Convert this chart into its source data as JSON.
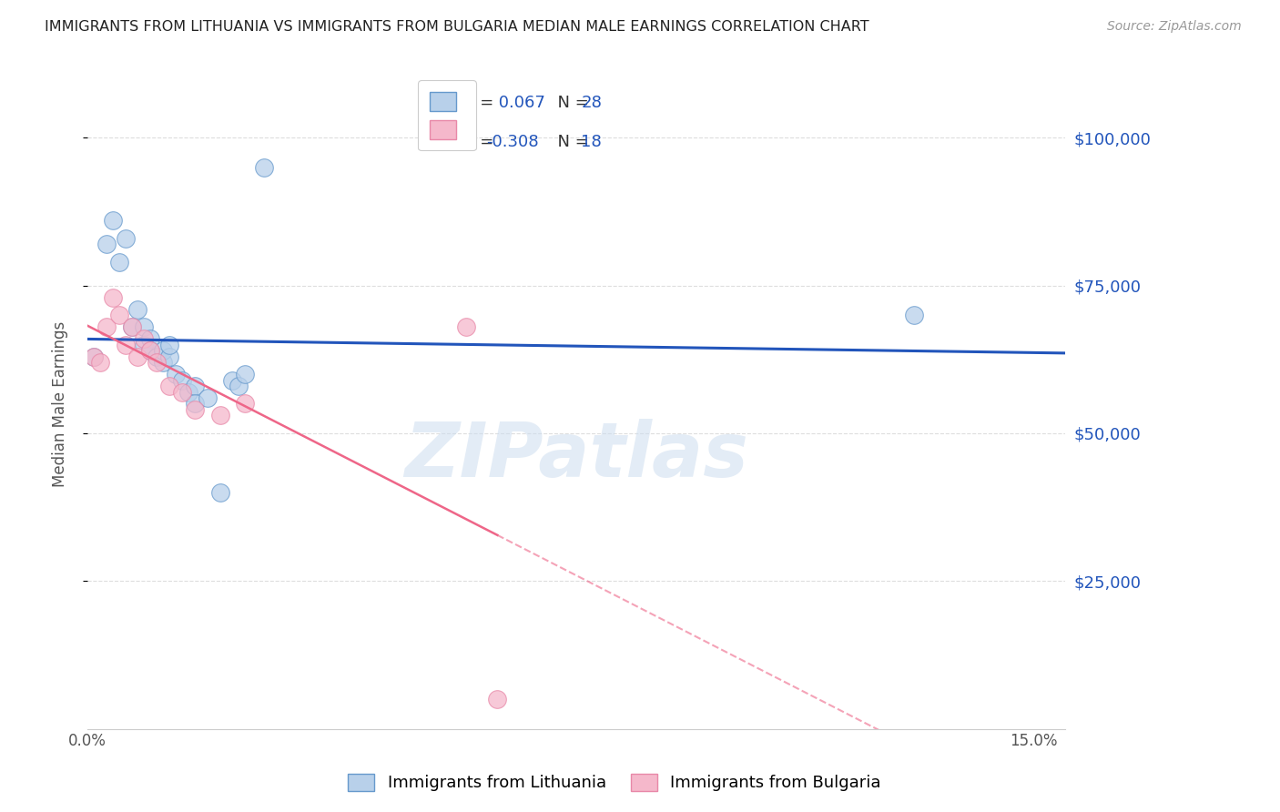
{
  "title": "IMMIGRANTS FROM LITHUANIA VS IMMIGRANTS FROM BULGARIA MEDIAN MALE EARNINGS CORRELATION CHART",
  "source": "Source: ZipAtlas.com",
  "ylabel": "Median Male Earnings",
  "ytick_labels": [
    "$25,000",
    "$50,000",
    "$75,000",
    "$100,000"
  ],
  "ytick_values": [
    25000,
    50000,
    75000,
    100000
  ],
  "ylim": [
    0,
    110000
  ],
  "xlim": [
    0.0,
    0.155
  ],
  "legend_R_lit": " 0.067",
  "legend_N_lit": "28",
  "legend_R_bul": "-0.308",
  "legend_N_bul": "18",
  "color_lit_fill": "#b8d0ea",
  "color_bul_fill": "#f5b8cb",
  "color_lit_edge": "#6699cc",
  "color_bul_edge": "#e888a8",
  "color_line_lit": "#2255bb",
  "color_line_bul": "#ee6688",
  "color_right_labels": "#2255bb",
  "watermark": "ZIPatlas",
  "lit_x": [
    0.001,
    0.003,
    0.004,
    0.005,
    0.006,
    0.007,
    0.008,
    0.009,
    0.009,
    0.01,
    0.01,
    0.011,
    0.012,
    0.012,
    0.013,
    0.013,
    0.014,
    0.015,
    0.016,
    0.017,
    0.017,
    0.019,
    0.021,
    0.023,
    0.024,
    0.025,
    0.028,
    0.131
  ],
  "lit_y": [
    63000,
    82000,
    86000,
    79000,
    83000,
    68000,
    71000,
    65000,
    68000,
    66000,
    64000,
    63000,
    62000,
    64000,
    63000,
    65000,
    60000,
    59000,
    57000,
    58000,
    55000,
    56000,
    40000,
    59000,
    58000,
    60000,
    95000,
    70000
  ],
  "bul_x": [
    0.001,
    0.002,
    0.003,
    0.004,
    0.005,
    0.006,
    0.007,
    0.008,
    0.009,
    0.01,
    0.011,
    0.013,
    0.015,
    0.017,
    0.021,
    0.025,
    0.06,
    0.065
  ],
  "bul_y": [
    63000,
    62000,
    68000,
    73000,
    70000,
    65000,
    68000,
    63000,
    66000,
    64000,
    62000,
    58000,
    57000,
    54000,
    53000,
    55000,
    68000,
    5000
  ],
  "marker_size": 200,
  "background_color": "#ffffff",
  "grid_color": "#dddddd"
}
